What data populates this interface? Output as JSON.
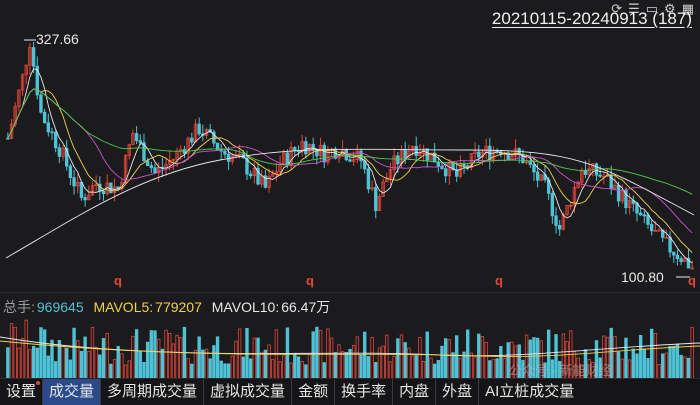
{
  "header": {
    "date_range": "20210115-20240913 (187)",
    "icons": [
      "share-icon",
      "list-icon",
      "window-icon",
      "settings-icon",
      "grid-icon"
    ]
  },
  "price": {
    "high_label": "327.66",
    "low_label": "100.80",
    "marker": "q"
  },
  "volume": {
    "total_label": "总手:",
    "total_value": "969645",
    "mavol5_label": "MAVOL5:",
    "mavol5_value": "779207",
    "mavol10_label": "MAVOL10:",
    "mavol10_value": "66.47",
    "mavol10_unit": "万"
  },
  "tabs": [
    "设置",
    "成交量",
    "多周期成交量",
    "虚拟成交量",
    "金额",
    "换手率",
    "内盘",
    "外盘",
    "AI立桩成交量"
  ],
  "active_tab": "成交量",
  "watermark": "公众号 · 新能财经",
  "colors": {
    "up": "#e0463a",
    "down": "#4fc3d6",
    "ma5": "#e8e8e8",
    "ma10": "#f0d24a",
    "ma20": "#d050d0",
    "ma60": "#4ad04a",
    "ma250": "#e8e8e8",
    "mavol5": "#e8e8e8",
    "mavol10": "#f0d24a"
  },
  "chart_data": {
    "type": "candlestick",
    "period": "weekly",
    "x_range": [
      "20210115",
      "20240913"
    ],
    "bar_count": 187,
    "high": 327.66,
    "low": 100.8,
    "y_range": [
      100.8,
      327.66
    ]
  }
}
